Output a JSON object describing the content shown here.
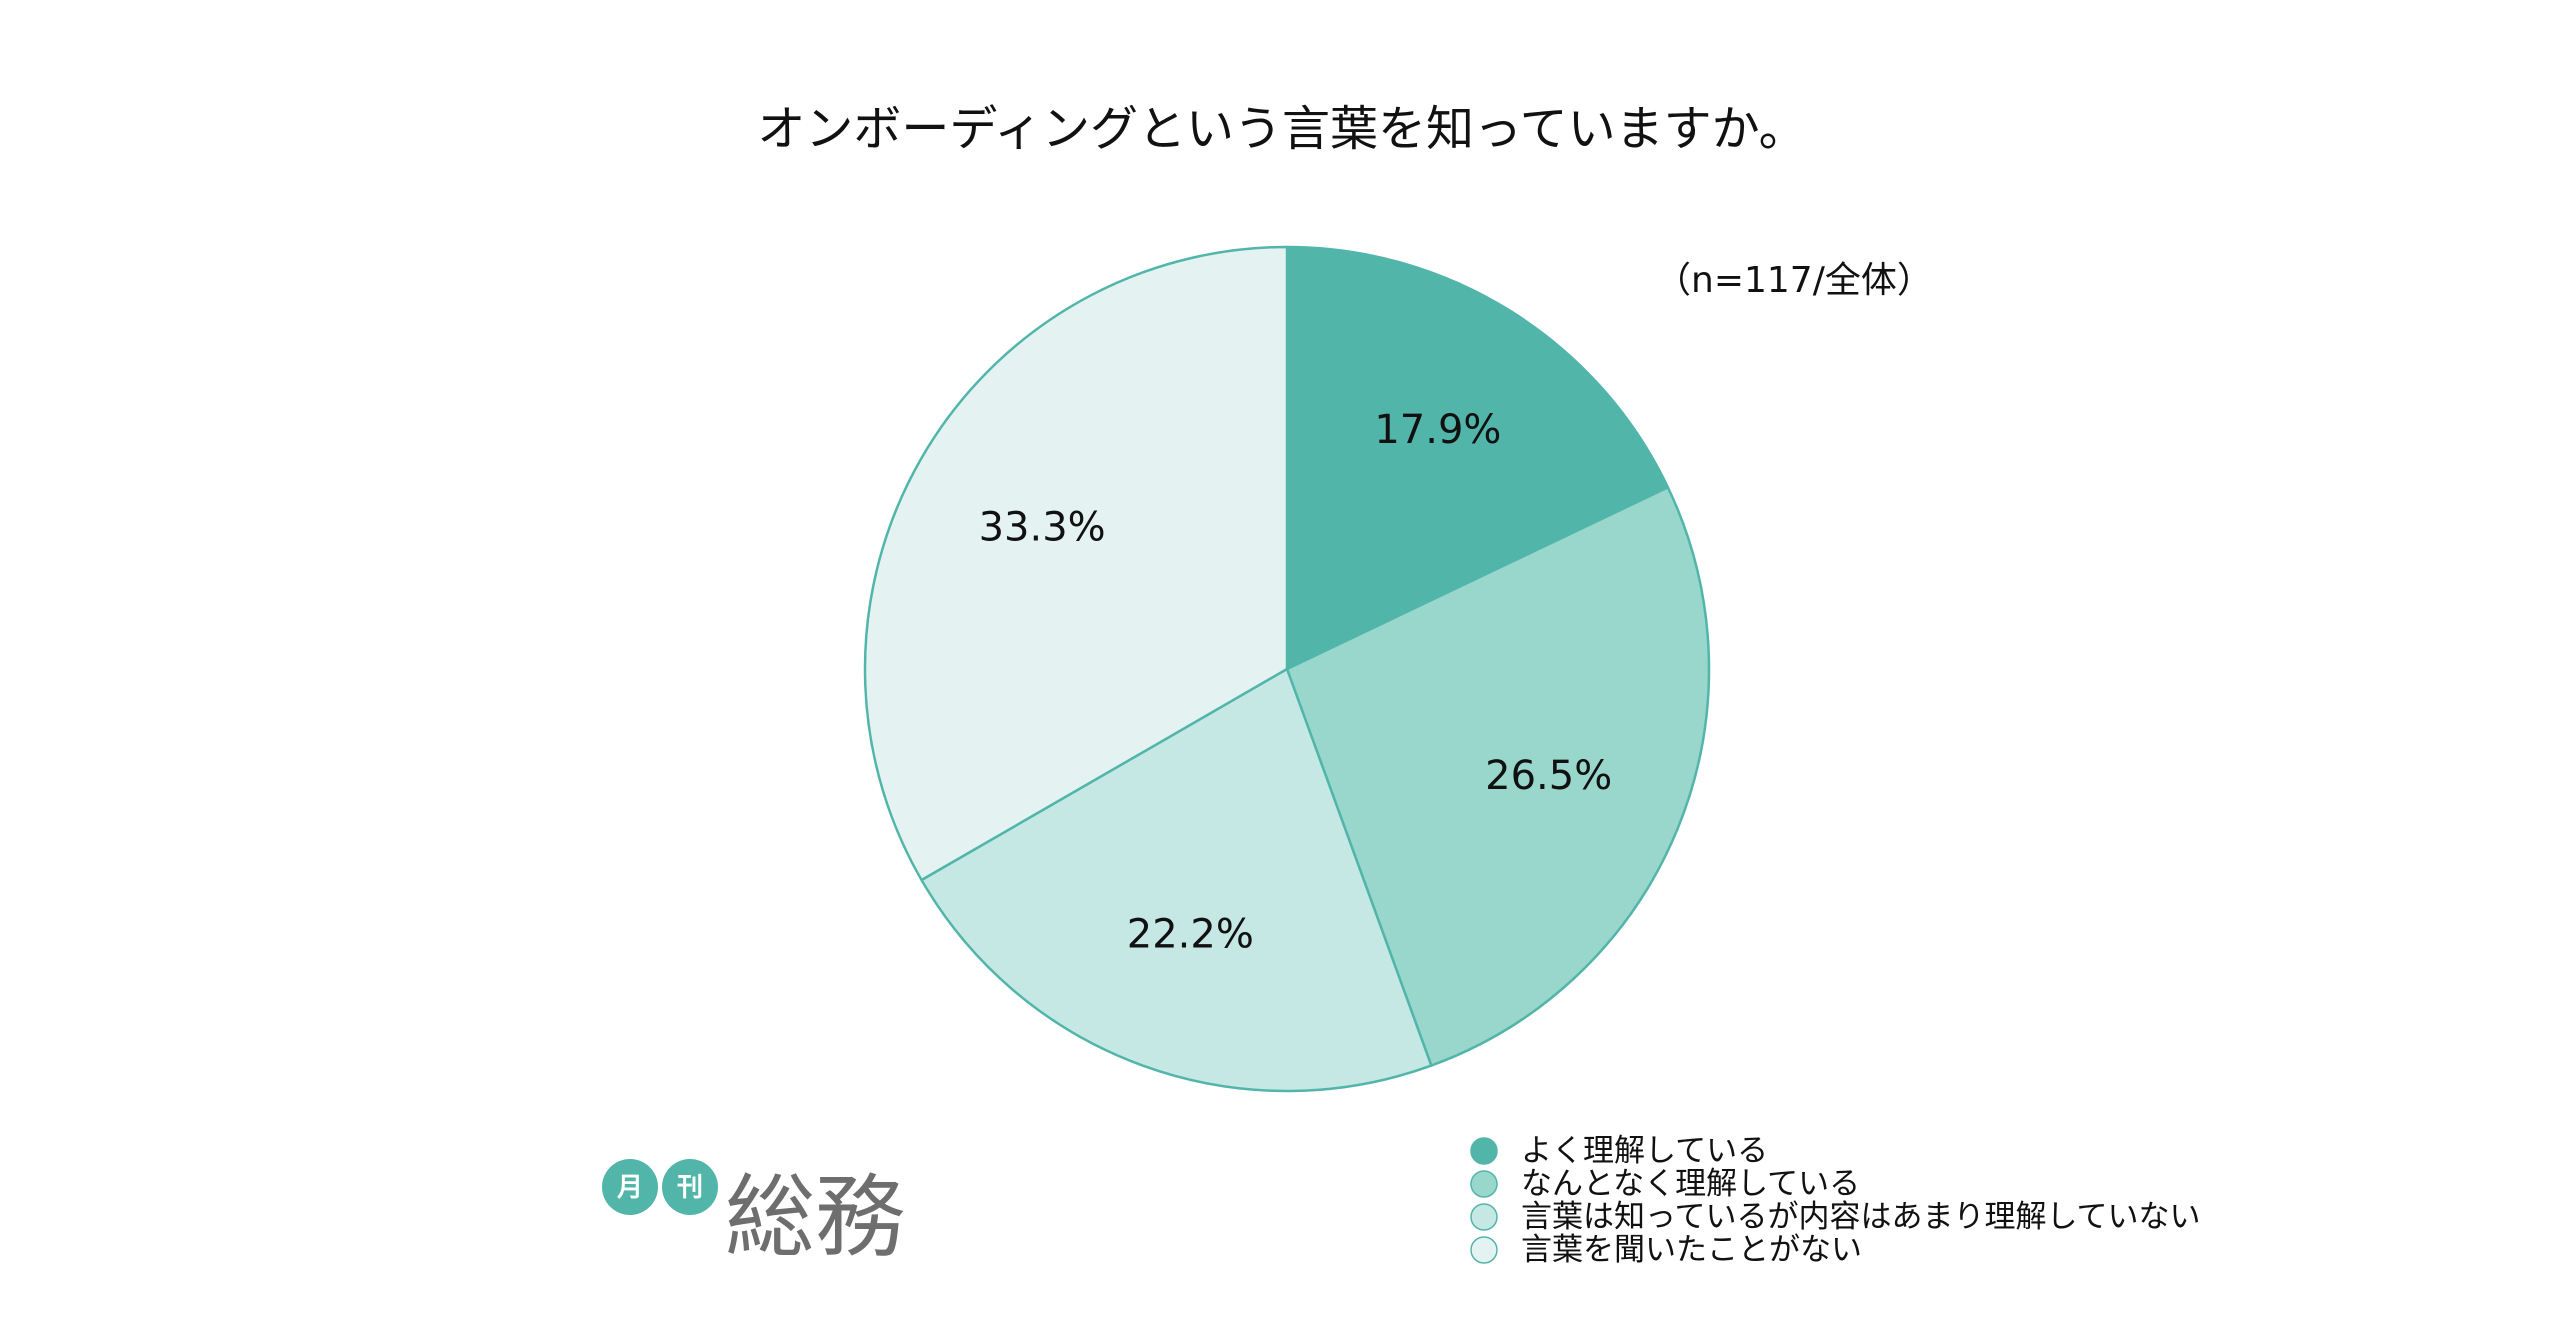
{
  "logo": {
    "badge_1": "月",
    "badge_2": "刊",
    "name": "総務",
    "badge_color": "#52b5aa",
    "name_color": "#6e6e6e"
  },
  "chart_data": {
    "type": "pie",
    "title": "オンボーディングという言葉を知っていますか。",
    "note": "（n=117/全体）",
    "start": "top",
    "direction": "clockwise",
    "legend_position": "bottom-right",
    "stroke_color": "#52b5aa",
    "slices": [
      {
        "label": "よく理解している",
        "value": 17.9,
        "value_label": "17.9%",
        "color": "#52b5aa"
      },
      {
        "label": "なんとなく理解している",
        "value": 26.5,
        "value_label": "26.5%",
        "color": "#99d6cc"
      },
      {
        "label": "言葉は知っているが内容はあまり理解していない",
        "value": 22.2,
        "value_label": "22.2%",
        "color": "#c6e8e4"
      },
      {
        "label": "言葉を聞いたことがない",
        "value": 33.3,
        "value_label": "33.3%",
        "color": "#e4f3f1"
      }
    ]
  }
}
